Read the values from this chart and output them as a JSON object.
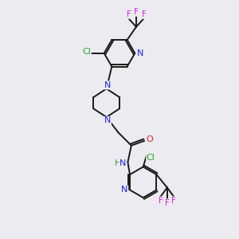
{
  "background_color": "#ebebf0",
  "bond_color": "#1a1a1a",
  "atom_colors": {
    "N": "#2222dd",
    "O": "#dd2222",
    "Cl": "#22aa22",
    "F": "#dd22dd",
    "C": "#1a1a1a",
    "H": "#22aa22"
  },
  "fig_w": 3.0,
  "fig_h": 3.0,
  "dpi": 100
}
